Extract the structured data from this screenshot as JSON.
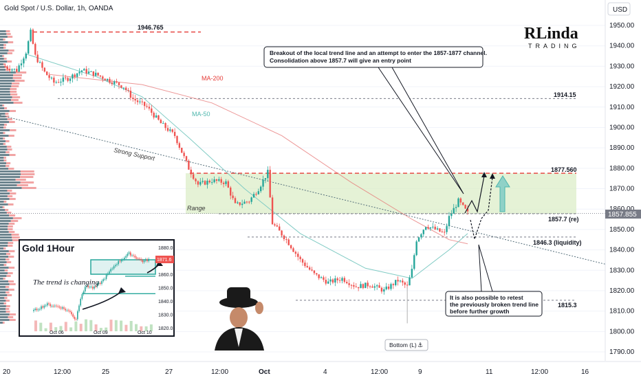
{
  "header": {
    "title": "Gold Spot / U.S. Dollar, 1h, OANDA",
    "currency": "USD"
  },
  "logo": {
    "text": "RLinda",
    "sub": "TRADING"
  },
  "colors": {
    "up": "#26a69a",
    "down": "#ef5350",
    "ma200": "#e57373",
    "ma50": "#80cbc4",
    "level": "#e53935",
    "range": "#c8e6c9"
  },
  "chart_data": {
    "type": "candlestick",
    "title": "Gold Spot / U.S. Dollar, 1h, OANDA",
    "ylim": [
      1785,
      1957
    ],
    "y_ticks": [
      1790,
      1800,
      1810,
      1820,
      1830,
      1840,
      1850,
      1860,
      1870,
      1880,
      1890,
      1900,
      1910,
      1920,
      1930,
      1940,
      1950
    ],
    "x_ticks": [
      "20",
      "12:00",
      "25",
      "27",
      "12:00",
      "Oct",
      "4",
      "12:00",
      "9",
      "11",
      "12:00",
      "16"
    ],
    "current_price": "1857.855",
    "price_path": [
      {
        "t": 0,
        "p": 1930
      },
      {
        "t": 3,
        "p": 1928
      },
      {
        "t": 5,
        "p": 1937
      },
      {
        "t": 6,
        "p": 1946.7
      },
      {
        "t": 7,
        "p": 1935
      },
      {
        "t": 9,
        "p": 1927
      },
      {
        "t": 11,
        "p": 1922
      },
      {
        "t": 14,
        "p": 1924
      },
      {
        "t": 17,
        "p": 1928
      },
      {
        "t": 20,
        "p": 1926
      },
      {
        "t": 23,
        "p": 1923
      },
      {
        "t": 26,
        "p": 1920
      },
      {
        "t": 28,
        "p": 1914
      },
      {
        "t": 31,
        "p": 1910
      },
      {
        "t": 34,
        "p": 1902
      },
      {
        "t": 37,
        "p": 1896
      },
      {
        "t": 40,
        "p": 1880
      },
      {
        "t": 42,
        "p": 1872
      },
      {
        "t": 45,
        "p": 1874
      },
      {
        "t": 48,
        "p": 1873
      },
      {
        "t": 50,
        "p": 1862
      },
      {
        "t": 53,
        "p": 1864
      },
      {
        "t": 55,
        "p": 1870
      },
      {
        "t": 57,
        "p": 1878
      },
      {
        "t": 58,
        "p": 1853
      },
      {
        "t": 61,
        "p": 1845
      },
      {
        "t": 64,
        "p": 1835
      },
      {
        "t": 67,
        "p": 1828
      },
      {
        "t": 70,
        "p": 1824
      },
      {
        "t": 73,
        "p": 1826
      },
      {
        "t": 76,
        "p": 1822
      },
      {
        "t": 79,
        "p": 1823
      },
      {
        "t": 82,
        "p": 1820
      },
      {
        "t": 85,
        "p": 1825
      },
      {
        "t": 87,
        "p": 1822
      },
      {
        "t": 88,
        "p": 1830
      },
      {
        "t": 89,
        "p": 1845
      },
      {
        "t": 91,
        "p": 1852
      },
      {
        "t": 93,
        "p": 1850
      },
      {
        "t": 95,
        "p": 1848
      },
      {
        "t": 96,
        "p": 1856
      },
      {
        "t": 98,
        "p": 1864
      },
      {
        "t": 100,
        "p": 1858
      }
    ],
    "ma50_path": [
      {
        "t": 5,
        "p": 1936
      },
      {
        "t": 20,
        "p": 1925
      },
      {
        "t": 30,
        "p": 1915
      },
      {
        "t": 40,
        "p": 1895
      },
      {
        "t": 52,
        "p": 1870
      },
      {
        "t": 64,
        "p": 1848
      },
      {
        "t": 78,
        "p": 1831
      },
      {
        "t": 88,
        "p": 1826
      },
      {
        "t": 96,
        "p": 1840
      },
      {
        "t": 100,
        "p": 1848
      }
    ],
    "ma200_path": [
      {
        "t": 10,
        "p": 1926
      },
      {
        "t": 30,
        "p": 1921
      },
      {
        "t": 45,
        "p": 1912
      },
      {
        "t": 60,
        "p": 1896
      },
      {
        "t": 75,
        "p": 1873
      },
      {
        "t": 88,
        "p": 1855
      },
      {
        "t": 96,
        "p": 1845
      },
      {
        "t": 100,
        "p": 1843
      }
    ],
    "levels": [
      {
        "label": "1946.765",
        "value": 1946.765,
        "style": "red-dash"
      },
      {
        "label": "1914.15",
        "value": 1914.15,
        "style": "gray-dash"
      },
      {
        "label": "1877.560",
        "value": 1877.56,
        "style": "red-dash"
      },
      {
        "label": "1857.7 (re)",
        "value": 1857.7,
        "style": "gray-dash"
      },
      {
        "label": "1846.3 (liquidity)",
        "value": 1846.3,
        "style": "gray-dash"
      },
      {
        "label": "1815.3",
        "value": 1815.3,
        "style": "gray-dash"
      }
    ],
    "range_zone": [
      1857.7,
      1877.56
    ],
    "labels": {
      "range": "Range",
      "support": "Strong Support",
      "ma200": "MA-200",
      "ma50": "MA-50",
      "bottom": "Bottom (L)"
    },
    "annotations": [
      "Breakout of the local trend line and an attempt to enter the 1857-1877 channel.",
      "Consolidation above 1857.7 will give an entry point",
      "It is also possible to retest",
      "the previously broken trend line",
      "before further growth"
    ],
    "inset": {
      "title": "Gold 1Hour",
      "caption": "The trend is changing",
      "y_ticks": [
        "1880.0",
        "1870.0",
        "1860.0",
        "1850.0",
        "1840.0",
        "1830.0",
        "1820.0"
      ],
      "x_ticks": [
        "Oct 06",
        "Oct 09",
        "Oct 10"
      ],
      "price_badge": "1871.6"
    }
  }
}
